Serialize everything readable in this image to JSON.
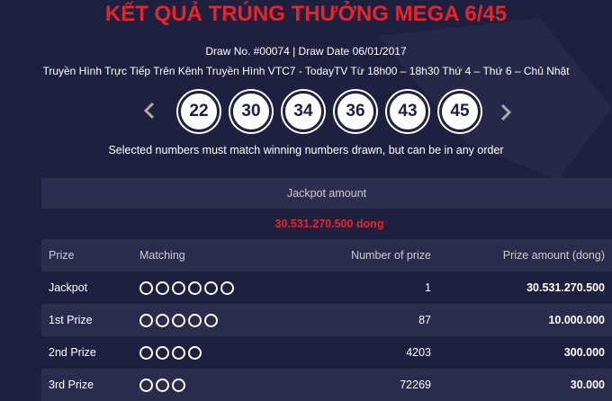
{
  "header": {
    "title": "KẾT QUẢ TRÚNG THƯỞNG MEGA 6/45",
    "draw_info": "Draw No. #00074 | Draw Date 06/01/2017",
    "broadcast": "Truyền Hình Trực Tiếp Trên Kênh Truyền Hình VTC7 - TodayTV Từ 18h00 – 18h30 Thứ 4 – Thứ 6 – Chủ Nhật"
  },
  "numbers": [
    "22",
    "30",
    "34",
    "36",
    "43",
    "45"
  ],
  "note": "Selected numbers must match winning numbers drawn, but can be in any order",
  "jackpot": {
    "label": "Jackpot amount",
    "amount": "30.531.270.500 dong"
  },
  "table": {
    "columns": [
      "Prize",
      "Matching",
      "Number of prize",
      "Prize amount (dong)"
    ],
    "rows": [
      {
        "prize": "Jackpot",
        "matching": 6,
        "count": "1",
        "amount": "30.531.270.500"
      },
      {
        "prize": "1st Prize",
        "matching": 5,
        "count": "87",
        "amount": "10.000.000"
      },
      {
        "prize": "2nd Prize",
        "matching": 4,
        "count": "4203",
        "amount": "300.000"
      },
      {
        "prize": "3rd Prize",
        "matching": 3,
        "count": "72269",
        "amount": "30.000"
      }
    ]
  }
}
